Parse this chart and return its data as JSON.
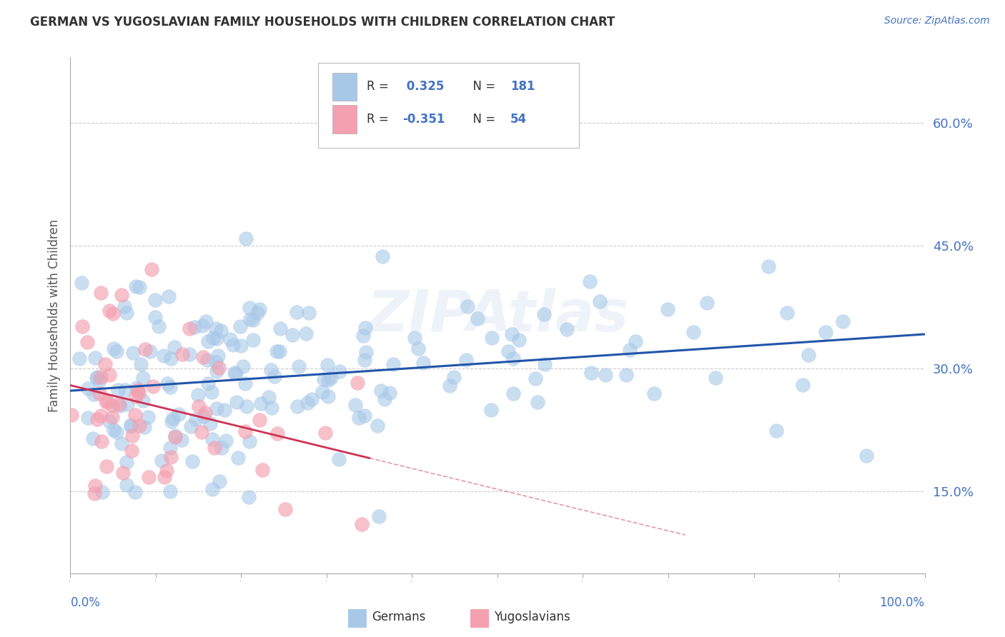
{
  "title": "GERMAN VS YUGOSLAVIAN FAMILY HOUSEHOLDS WITH CHILDREN CORRELATION CHART",
  "source": "Source: ZipAtlas.com",
  "ylabel": "Family Households with Children",
  "watermark": "ZIPAtlas",
  "german_R": 0.325,
  "german_N": 181,
  "yugoslav_R": -0.351,
  "yugoslav_N": 54,
  "german_color": "#a8c8e8",
  "yugoslav_color": "#f4a0b0",
  "german_line_color": "#2255aa",
  "yugoslav_line_color": "#cc3355",
  "background_color": "#ffffff",
  "grid_color": "#cccccc",
  "yticks": [
    0.15,
    0.3,
    0.45,
    0.6
  ],
  "ytick_labels": [
    "15.0%",
    "30.0%",
    "45.0%",
    "60.0%"
  ],
  "xmin": 0.0,
  "xmax": 1.0,
  "ymin": 0.05,
  "ymax": 0.68,
  "legend_label_german": "Germans",
  "legend_label_yugoslav": "Yugoslavians"
}
